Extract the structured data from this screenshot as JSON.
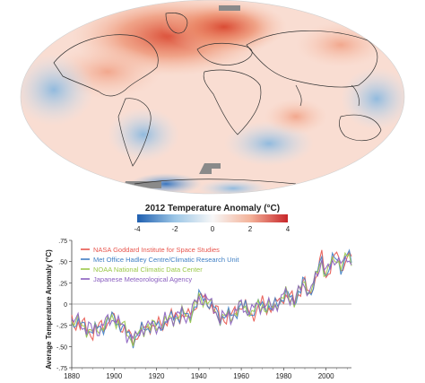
{
  "map": {
    "colorbar_title": "2012 Temperature Anomaly (°C)",
    "colorbar_ticks": [
      "-4",
      "-2",
      "0",
      "2",
      "4"
    ],
    "colors": {
      "cold_extreme": "#1f5fb0",
      "cold": "#9cc6e6",
      "neutral": "#f7f7f7",
      "warm": "#f4b39a",
      "warm_extreme": "#c8262a",
      "no_data": "#8a8a8a",
      "coastline": "#333333"
    }
  },
  "chart_data": {
    "type": "line",
    "ylabel": "Average Temperature Anomaly (°C)",
    "xlim": [
      1880,
      2012
    ],
    "ylim": [
      -0.75,
      0.75
    ],
    "x_ticks": [
      1880,
      1900,
      1920,
      1940,
      1960,
      1980,
      2000
    ],
    "x_tick_labels": [
      "1880",
      "1900",
      "1920",
      "1940",
      "1960",
      "1980",
      "2000"
    ],
    "y_ticks": [
      -0.75,
      -0.5,
      -0.25,
      0,
      0.25,
      0.5,
      0.75
    ],
    "y_tick_labels": [
      "-.75",
      "-.50",
      "-.25",
      "0",
      ".25",
      ".50",
      ".75"
    ],
    "legend_position": "top-left",
    "grid": false,
    "series": [
      {
        "name": "NASA Goddard Institute for Space Studies",
        "color": "#e8574f",
        "noise_seed": 1
      },
      {
        "name": "Met Office Hadley Centre/Climatic Research Unit",
        "color": "#3f7fc4",
        "noise_seed": 2
      },
      {
        "name": "NOAA National Climatic Data Center",
        "color": "#9bc84a",
        "noise_seed": 3
      },
      {
        "name": "Japanese Meteorological Agency",
        "color": "#8a5fc0",
        "noise_seed": 4
      }
    ],
    "baseline_anomaly": [
      [
        1880,
        -0.2
      ],
      [
        1885,
        -0.25
      ],
      [
        1890,
        -0.32
      ],
      [
        1895,
        -0.25
      ],
      [
        1900,
        -0.15
      ],
      [
        1905,
        -0.32
      ],
      [
        1910,
        -0.42
      ],
      [
        1915,
        -0.25
      ],
      [
        1920,
        -0.27
      ],
      [
        1925,
        -0.2
      ],
      [
        1930,
        -0.12
      ],
      [
        1935,
        -0.15
      ],
      [
        1940,
        0.05
      ],
      [
        1944,
        0.08
      ],
      [
        1945,
        0.0
      ],
      [
        1950,
        -0.15
      ],
      [
        1955,
        -0.15
      ],
      [
        1960,
        -0.02
      ],
      [
        1965,
        -0.1
      ],
      [
        1970,
        0.0
      ],
      [
        1975,
        -0.05
      ],
      [
        1980,
        0.1
      ],
      [
        1985,
        0.05
      ],
      [
        1990,
        0.25
      ],
      [
        1992,
        0.12
      ],
      [
        1995,
        0.3
      ],
      [
        1998,
        0.55
      ],
      [
        2000,
        0.35
      ],
      [
        2005,
        0.57
      ],
      [
        2008,
        0.42
      ],
      [
        2010,
        0.58
      ],
      [
        2012,
        0.5
      ]
    ]
  }
}
